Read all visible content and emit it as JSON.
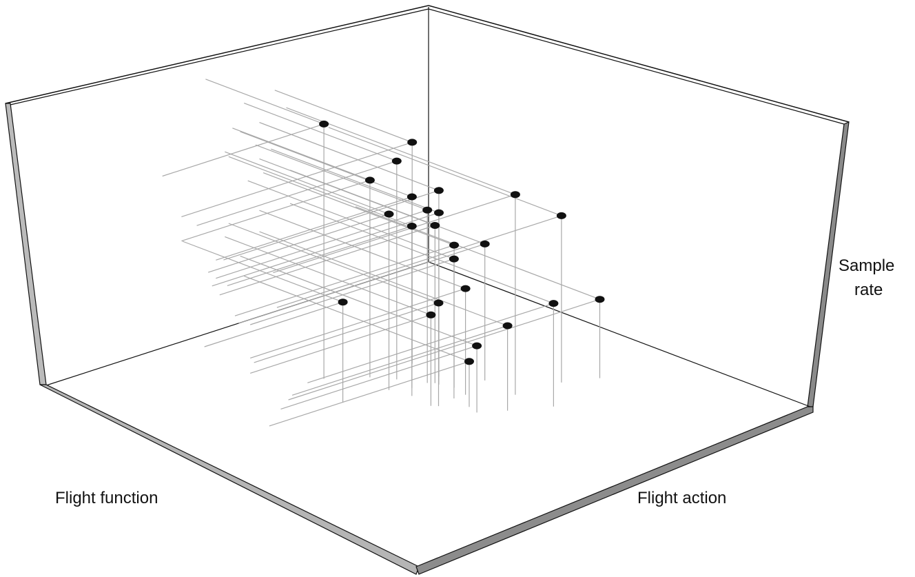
{
  "chart_data": {
    "type": "scatter",
    "projection": "3d",
    "title": "",
    "axes": {
      "x_label": "Flight function",
      "y_label": "Flight action",
      "z_label_lines": [
        "Sample",
        "rate"
      ]
    },
    "ranges": {
      "x": [
        0,
        10
      ],
      "y": [
        0,
        10
      ],
      "z": [
        0,
        10
      ]
    },
    "tick_labels": "none",
    "grid": false,
    "legend": "none",
    "drop_lines": true,
    "colors": {
      "point": "#111111",
      "guide": "#a8a8a8",
      "frame": "#111111",
      "floor_edge": "#999999"
    },
    "points": [
      {
        "x": 4.2,
        "y": 3.1,
        "z": 8.4
      },
      {
        "x": 5.2,
        "y": 4.0,
        "z": 7.2
      },
      {
        "x": 6.0,
        "y": 3.6,
        "z": 7.3
      },
      {
        "x": 5.1,
        "y": 4.5,
        "z": 6.3
      },
      {
        "x": 5.6,
        "y": 4.7,
        "z": 6.4
      },
      {
        "x": 4.9,
        "y": 3.6,
        "z": 6.5
      },
      {
        "x": 4.7,
        "y": 4.3,
        "z": 5.8
      },
      {
        "x": 5.5,
        "y": 4.5,
        "z": 5.7
      },
      {
        "x": 5.6,
        "y": 4.6,
        "z": 5.2
      },
      {
        "x": 4.8,
        "y": 4.8,
        "z": 5.6
      },
      {
        "x": 5.9,
        "y": 4.4,
        "z": 5.4
      },
      {
        "x": 6.3,
        "y": 6.0,
        "z": 6.6
      },
      {
        "x": 5.7,
        "y": 5.0,
        "z": 4.7
      },
      {
        "x": 5.3,
        "y": 5.4,
        "z": 4.6
      },
      {
        "x": 7.4,
        "y": 6.1,
        "z": 5.5
      },
      {
        "x": 6.4,
        "y": 5.1,
        "z": 4.5
      },
      {
        "x": 5.6,
        "y": 5.4,
        "z": 3.5
      },
      {
        "x": 4.8,
        "y": 5.5,
        "z": 3.4
      },
      {
        "x": 6.4,
        "y": 6.9,
        "z": 3.4
      },
      {
        "x": 4.7,
        "y": 5.4,
        "z": 3.0
      },
      {
        "x": 5.6,
        "y": 6.5,
        "z": 2.8
      },
      {
        "x": 3.6,
        "y": 4.2,
        "z": 3.3
      },
      {
        "x": 8.1,
        "y": 6.4,
        "z": 2.6
      },
      {
        "x": 5.1,
        "y": 6.2,
        "z": 2.2
      },
      {
        "x": 5.2,
        "y": 5.9,
        "z": 1.5
      }
    ]
  }
}
